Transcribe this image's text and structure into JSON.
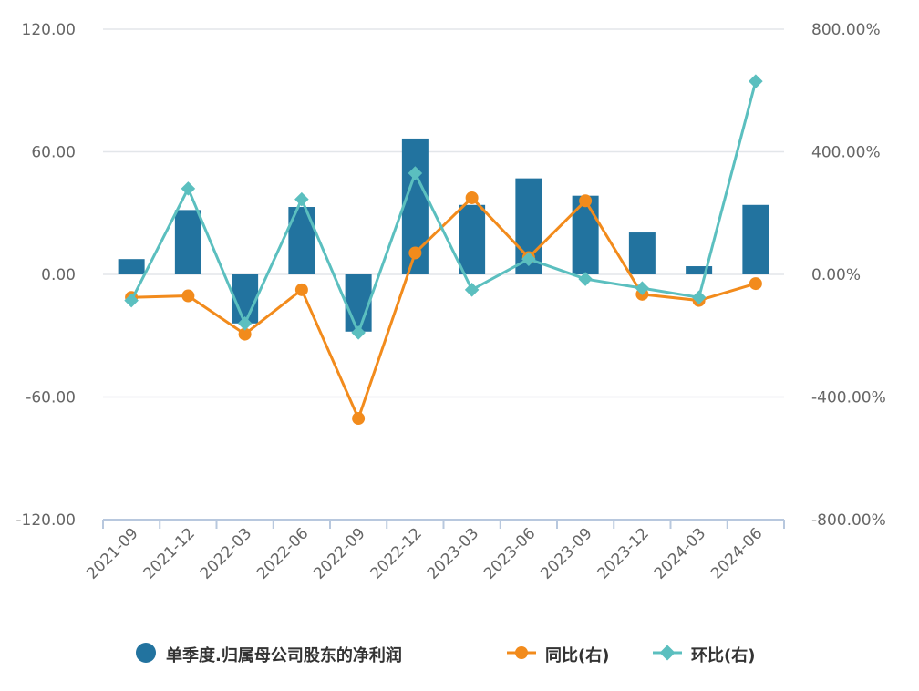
{
  "chart_data": {
    "type": "bar",
    "categories": [
      "2021-09",
      "2021-12",
      "2022-03",
      "2022-06",
      "2022-09",
      "2022-12",
      "2023-03",
      "2023-06",
      "2023-09",
      "2023-12",
      "2024-03",
      "2024-06"
    ],
    "series": [
      {
        "name": "单季度.归属母公司股东的净利润",
        "type": "bar",
        "axis": "left",
        "values": [
          7.5,
          31.5,
          -24,
          33,
          -28,
          66.5,
          34,
          47,
          38.5,
          20.5,
          4,
          34
        ]
      },
      {
        "name": "同比(右)",
        "type": "line",
        "axis": "right",
        "values": [
          -75,
          -70,
          -195,
          -50,
          -470,
          70,
          250,
          55,
          240,
          -65,
          -85,
          -30
        ]
      },
      {
        "name": "环比(右)",
        "type": "line",
        "axis": "right",
        "values": [
          -85,
          280,
          -160,
          245,
          -190,
          330,
          -50,
          50,
          -15,
          -45,
          -75,
          630
        ]
      }
    ],
    "left_axis": {
      "ticks": [
        "120.00",
        "60.00",
        "0.00",
        "-60.00",
        "-120.00"
      ],
      "ylim": [
        -120,
        120
      ]
    },
    "right_axis": {
      "ticks": [
        "800.00%",
        "400.00%",
        "0.00%",
        "-400.00%",
        "-800.00%"
      ],
      "ylim": [
        -800,
        800
      ]
    },
    "colors": {
      "bar": "#22739f",
      "yoy": "#f28b1c",
      "qoq": "#5bbfbf",
      "grid": "#e3e6ea",
      "axis": "#b8c8de"
    },
    "legend_position": "bottom",
    "grid": true
  }
}
